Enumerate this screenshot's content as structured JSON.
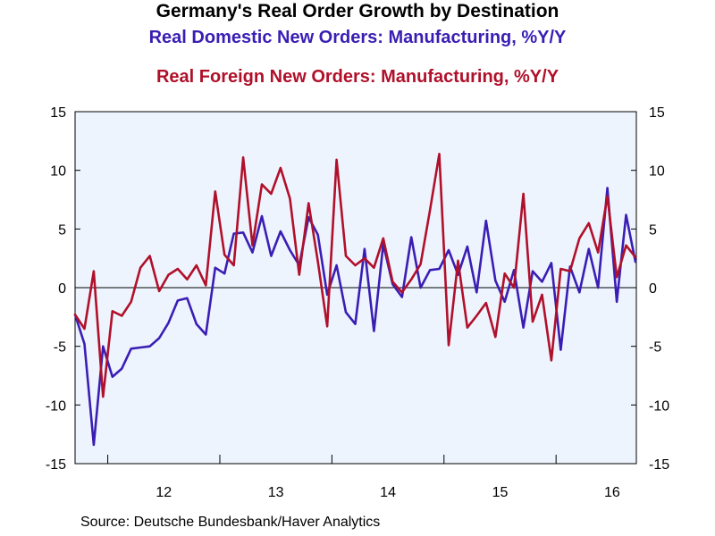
{
  "chart_data": {
    "type": "line",
    "title": "Germany's Real Order Growth by Destination",
    "ylim": [
      -15,
      15
    ],
    "yticks": [
      15,
      10,
      5,
      0,
      -5,
      -10,
      -15
    ],
    "year_labels": [
      "12",
      "13",
      "14",
      "15",
      "16"
    ],
    "x_start": "2011-09",
    "frequency": "monthly",
    "grid": false,
    "zero_line": true,
    "series": [
      {
        "name": "Real Domestic New Orders: Manufacturing, %Y/Y",
        "color": "#3a1eb4",
        "values": [
          -2.3,
          -4.8,
          -13.4,
          -5.0,
          -7.6,
          -6.9,
          -5.2,
          -5.1,
          -5.0,
          -4.3,
          -3.0,
          -1.1,
          -0.9,
          -3.1,
          -4.0,
          1.7,
          1.2,
          4.6,
          4.7,
          3.0,
          6.1,
          2.7,
          4.8,
          3.2,
          1.9,
          6.0,
          4.5,
          -0.6,
          1.9,
          -2.1,
          -3.1,
          3.3,
          -3.7,
          3.7,
          0.3,
          -0.8,
          4.3,
          0.0,
          1.5,
          1.6,
          3.2,
          1.1,
          3.5,
          -0.4,
          5.7,
          0.6,
          -1.2,
          1.5,
          -3.4,
          1.4,
          0.5,
          2.1,
          -5.3,
          1.8,
          -0.4,
          3.3,
          0.0,
          8.5,
          -1.2,
          6.2,
          2.2
        ]
      },
      {
        "name": "Real Foreign New Orders: Manufacturing, %Y/Y",
        "color": "#b0102a",
        "values": [
          -2.3,
          -3.5,
          1.4,
          -9.3,
          -2.0,
          -2.4,
          -1.2,
          1.7,
          2.7,
          -0.3,
          1.1,
          1.6,
          0.7,
          1.9,
          0.2,
          8.2,
          2.8,
          1.9,
          11.1,
          3.6,
          8.8,
          8.0,
          10.2,
          7.6,
          1.1,
          7.2,
          2.2,
          -3.3,
          10.9,
          2.7,
          1.9,
          2.5,
          1.7,
          4.2,
          0.5,
          -0.4,
          0.7,
          2.0,
          6.6,
          11.4,
          -4.9,
          2.3,
          -3.4,
          -2.4,
          -1.3,
          -4.2,
          1.2,
          0.0,
          8.0,
          -2.9,
          -0.6,
          -6.2,
          1.6,
          1.4,
          4.2,
          5.5,
          3.0,
          7.8,
          0.9,
          3.6,
          2.6
        ]
      }
    ]
  },
  "source": "Source:  Deutsche Bundesbank/Haver Analytics",
  "colors": {
    "plot_background": "#eef4fe",
    "axis": "#000000"
  }
}
